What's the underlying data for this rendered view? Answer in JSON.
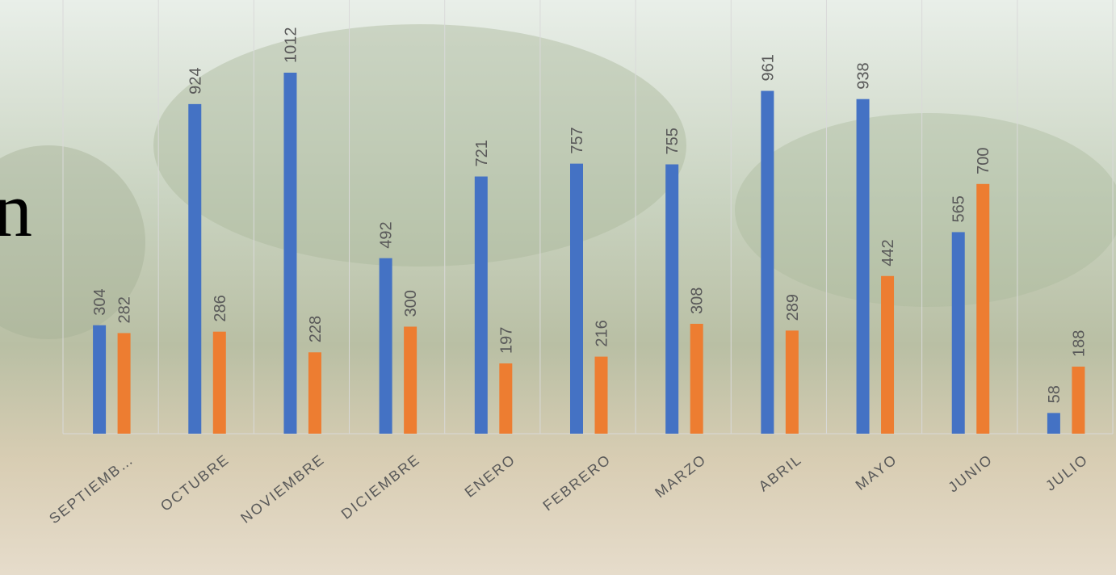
{
  "chart_data": {
    "type": "bar",
    "annotation": "n",
    "categories": [
      "SEPTIEMB…",
      "OCTUBRE",
      "NOVIEMBRE",
      "DICIEMBRE",
      "ENERO",
      "FEBRERO",
      "MARZO",
      "ABRIL",
      "MAYO",
      "JUNIO",
      "JULIO"
    ],
    "series": [
      {
        "color": "#4472c4",
        "values": [
          304,
          924,
          1012,
          492,
          721,
          757,
          755,
          961,
          938,
          565,
          58
        ]
      },
      {
        "color": "#ed7d31",
        "values": [
          282,
          286,
          228,
          300,
          197,
          216,
          308,
          289,
          442,
          700,
          188
        ]
      }
    ],
    "grid": true
  }
}
